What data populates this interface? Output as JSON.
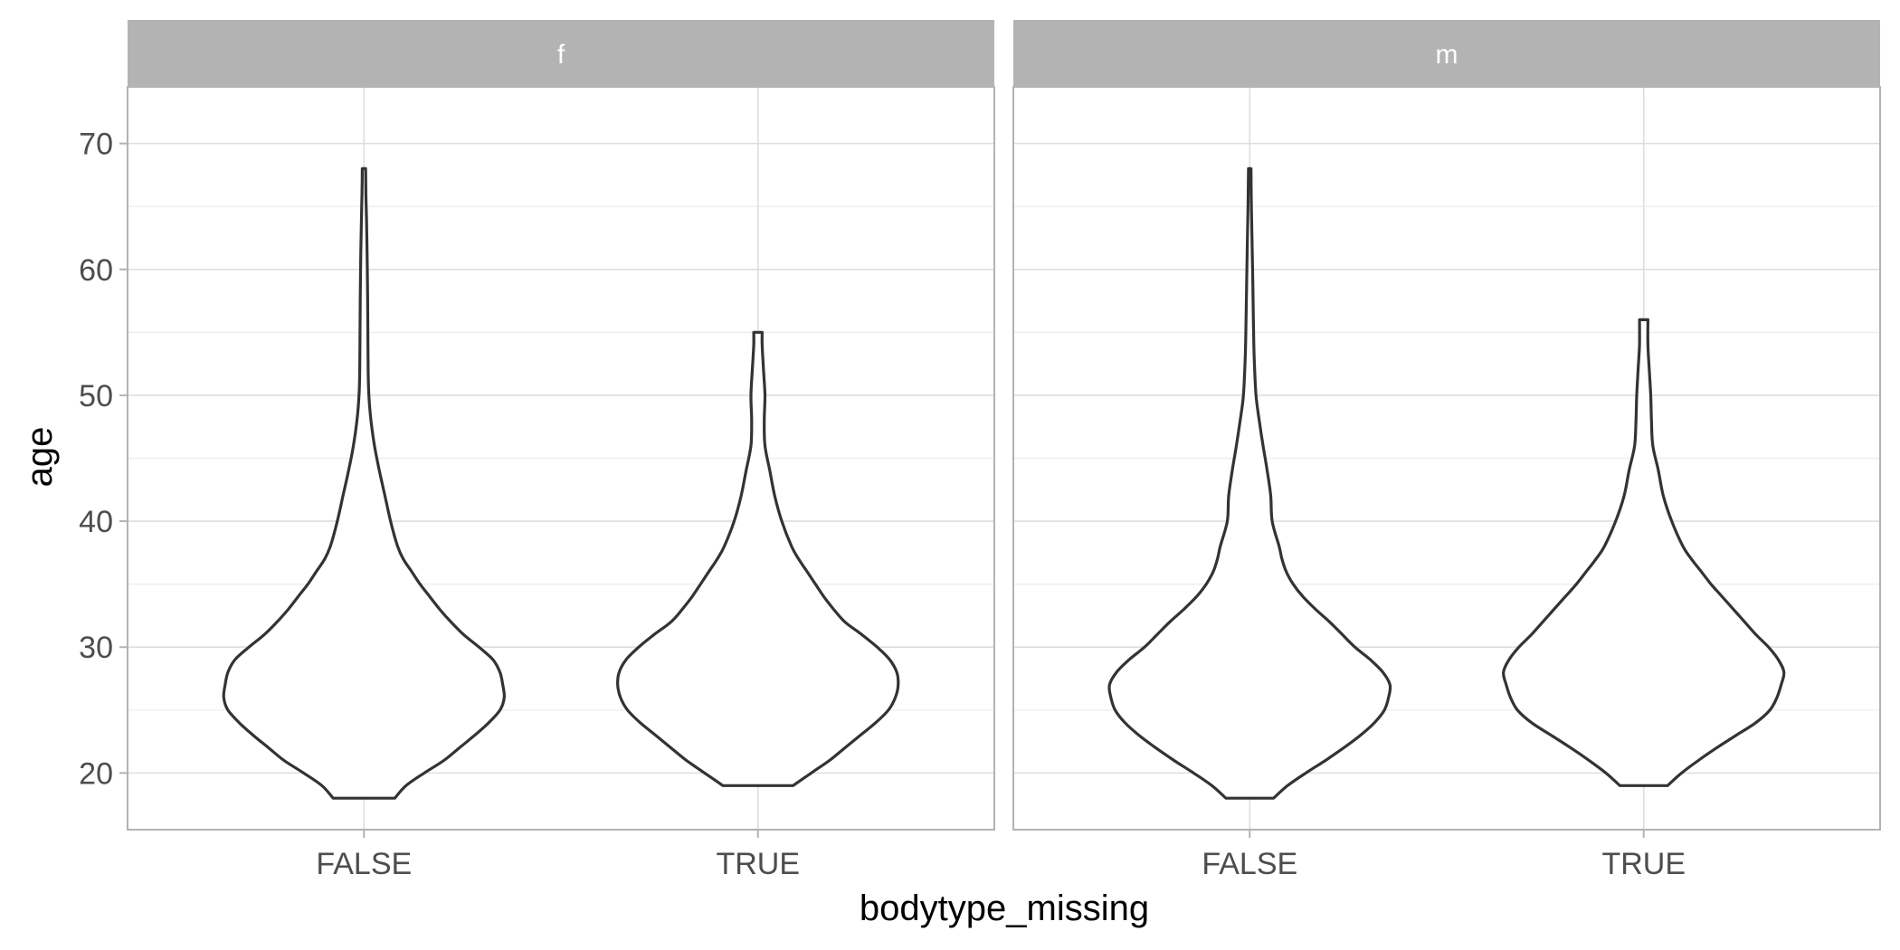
{
  "chart_data": {
    "type": "violin",
    "title": "",
    "xlabel": "bodytype_missing",
    "ylabel": "age",
    "ylim": [
      15.5,
      74.5
    ],
    "y_ticks": [
      20,
      30,
      40,
      50,
      60,
      70
    ],
    "categories": [
      "FALSE",
      "TRUE"
    ],
    "grid": true,
    "facets": [
      {
        "label": "f",
        "violins": [
          {
            "category": "FALSE",
            "min": 18,
            "max": 68,
            "profile": [
              [
                18,
                0.22
              ],
              [
                19,
                0.3
              ],
              [
                20,
                0.43
              ],
              [
                21,
                0.57
              ],
              [
                22,
                0.68
              ],
              [
                23,
                0.79
              ],
              [
                24,
                0.89
              ],
              [
                25,
                0.97
              ],
              [
                26,
                1.0
              ],
              [
                27,
                0.99
              ],
              [
                28,
                0.97
              ],
              [
                29,
                0.92
              ],
              [
                30,
                0.82
              ],
              [
                31,
                0.71
              ],
              [
                32,
                0.62
              ],
              [
                33,
                0.54
              ],
              [
                34,
                0.47
              ],
              [
                35,
                0.4
              ],
              [
                36,
                0.34
              ],
              [
                37,
                0.28
              ],
              [
                38,
                0.24
              ],
              [
                40,
                0.19
              ],
              [
                42,
                0.15
              ],
              [
                44,
                0.11
              ],
              [
                46,
                0.075
              ],
              [
                48,
                0.05
              ],
              [
                50,
                0.035
              ],
              [
                52,
                0.03
              ],
              [
                55,
                0.028
              ],
              [
                58,
                0.026
              ],
              [
                61,
                0.023
              ],
              [
                64,
                0.018
              ],
              [
                66,
                0.014
              ],
              [
                68,
                0.012
              ]
            ]
          },
          {
            "category": "TRUE",
            "min": 19,
            "max": 55,
            "profile": [
              [
                19,
                0.25
              ],
              [
                20,
                0.38
              ],
              [
                21,
                0.51
              ],
              [
                22,
                0.62
              ],
              [
                23,
                0.73
              ],
              [
                24,
                0.84
              ],
              [
                25,
                0.93
              ],
              [
                26,
                0.98
              ],
              [
                27,
                1.0
              ],
              [
                28,
                0.99
              ],
              [
                29,
                0.94
              ],
              [
                30,
                0.85
              ],
              [
                31,
                0.74
              ],
              [
                32,
                0.62
              ],
              [
                33,
                0.54
              ],
              [
                34,
                0.47
              ],
              [
                35,
                0.41
              ],
              [
                36,
                0.35
              ],
              [
                37,
                0.29
              ],
              [
                38,
                0.24
              ],
              [
                40,
                0.17
              ],
              [
                42,
                0.12
              ],
              [
                44,
                0.085
              ],
              [
                46,
                0.05
              ],
              [
                48,
                0.045
              ],
              [
                50,
                0.05
              ],
              [
                52,
                0.04
              ],
              [
                54,
                0.03
              ],
              [
                55,
                0.03
              ]
            ]
          }
        ]
      },
      {
        "label": "m",
        "violins": [
          {
            "category": "FALSE",
            "min": 18,
            "max": 68,
            "profile": [
              [
                18,
                0.17
              ],
              [
                19,
                0.27
              ],
              [
                20,
                0.4
              ],
              [
                21,
                0.54
              ],
              [
                22,
                0.67
              ],
              [
                23,
                0.79
              ],
              [
                24,
                0.89
              ],
              [
                25,
                0.96
              ],
              [
                26,
                0.99
              ],
              [
                27,
                1.0
              ],
              [
                28,
                0.95
              ],
              [
                29,
                0.86
              ],
              [
                30,
                0.75
              ],
              [
                31,
                0.66
              ],
              [
                32,
                0.57
              ],
              [
                33,
                0.47
              ],
              [
                34,
                0.38
              ],
              [
                35,
                0.31
              ],
              [
                36,
                0.26
              ],
              [
                37,
                0.23
              ],
              [
                38,
                0.21
              ],
              [
                40,
                0.16
              ],
              [
                42,
                0.15
              ],
              [
                44,
                0.125
              ],
              [
                46,
                0.095
              ],
              [
                48,
                0.068
              ],
              [
                50,
                0.045
              ],
              [
                53,
                0.032
              ],
              [
                56,
                0.026
              ],
              [
                59,
                0.022
              ],
              [
                62,
                0.017
              ],
              [
                65,
                0.012
              ],
              [
                68,
                0.009
              ]
            ]
          },
          {
            "category": "TRUE",
            "min": 19,
            "max": 56,
            "profile": [
              [
                19,
                0.17
              ],
              [
                20,
                0.27
              ],
              [
                21,
                0.39
              ],
              [
                22,
                0.52
              ],
              [
                23,
                0.66
              ],
              [
                24,
                0.8
              ],
              [
                25,
                0.9
              ],
              [
                26,
                0.95
              ],
              [
                27,
                0.98
              ],
              [
                28,
                1.0
              ],
              [
                29,
                0.96
              ],
              [
                30,
                0.89
              ],
              [
                31,
                0.8
              ],
              [
                32,
                0.72
              ],
              [
                33,
                0.64
              ],
              [
                34,
                0.56
              ],
              [
                35,
                0.48
              ],
              [
                36,
                0.41
              ],
              [
                37,
                0.34
              ],
              [
                38,
                0.28
              ],
              [
                40,
                0.2
              ],
              [
                42,
                0.14
              ],
              [
                44,
                0.105
              ],
              [
                46,
                0.065
              ],
              [
                48,
                0.055
              ],
              [
                50,
                0.05
              ],
              [
                52,
                0.04
              ],
              [
                54,
                0.03
              ],
              [
                56,
                0.03
              ]
            ]
          }
        ]
      }
    ]
  }
}
